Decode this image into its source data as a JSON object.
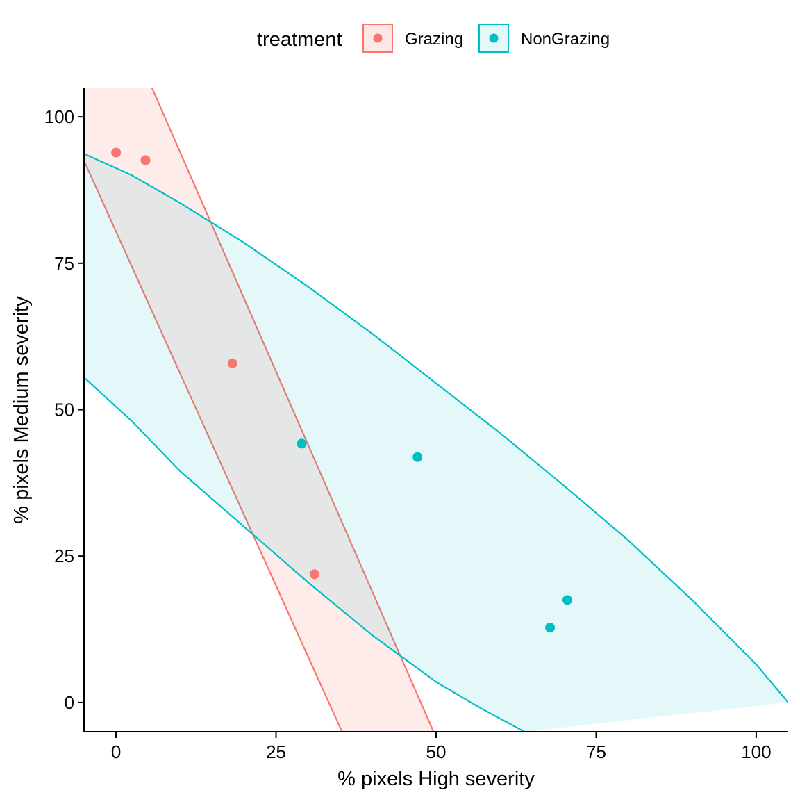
{
  "chart_data": {
    "type": "scatter",
    "xlabel": "% pixels High severity",
    "ylabel": "% pixels Medium severity",
    "xlim": [
      -5,
      105
    ],
    "ylim": [
      -5,
      105
    ],
    "xticks": [
      0,
      25,
      50,
      75,
      100
    ],
    "yticks": [
      0,
      25,
      50,
      75,
      100
    ],
    "xtick_labels": [
      "0",
      "25",
      "50",
      "75",
      "100"
    ],
    "ytick_labels": [
      "0",
      "25",
      "50",
      "75",
      "100"
    ],
    "grid": false,
    "legend": {
      "title": "treatment",
      "position": "top",
      "entries": [
        "Grazing",
        "NonGrazing"
      ]
    },
    "series": [
      {
        "name": "Grazing",
        "color": "#F8766D",
        "points": [
          [
            0.0,
            93.9
          ],
          [
            4.6,
            92.6
          ],
          [
            18.2,
            57.9
          ],
          [
            31.0,
            21.9
          ]
        ],
        "regression_band": {
          "upper": [
            [
              -5,
              119.6
            ],
            [
              5.6,
              105.0
            ],
            [
              49.6,
              -5.0
            ]
          ],
          "lower": [
            [
              -5,
              92.5
            ],
            [
              35.3,
              -5.0
            ]
          ]
        }
      },
      {
        "name": "NonGrazing",
        "color": "#00BFC4",
        "points": [
          [
            29.0,
            44.2
          ],
          [
            47.1,
            41.9
          ],
          [
            67.8,
            12.8
          ],
          [
            70.5,
            17.5
          ]
        ],
        "regression_band": {
          "upper": [
            [
              -5,
              93.7
            ],
            [
              2.5,
              90.0
            ],
            [
              10.0,
              85.3
            ],
            [
              20.0,
              78.5
            ],
            [
              30.0,
              71.0
            ],
            [
              40.0,
              63.0
            ],
            [
              50.0,
              54.5
            ],
            [
              60.0,
              46.0
            ],
            [
              70.0,
              37.0
            ],
            [
              80.0,
              27.7
            ],
            [
              90.0,
              17.5
            ],
            [
              100.0,
              6.5
            ],
            [
              105.0,
              0.0
            ]
          ],
          "lower": [
            [
              -5,
              55.5
            ],
            [
              2.5,
              48.0
            ],
            [
              10.0,
              39.5
            ],
            [
              20.0,
              30.0
            ],
            [
              30.0,
              20.5
            ],
            [
              40.0,
              11.5
            ],
            [
              50.0,
              3.5
            ],
            [
              57.0,
              -1.0
            ],
            [
              63.8,
              -5.0
            ]
          ]
        }
      }
    ]
  }
}
